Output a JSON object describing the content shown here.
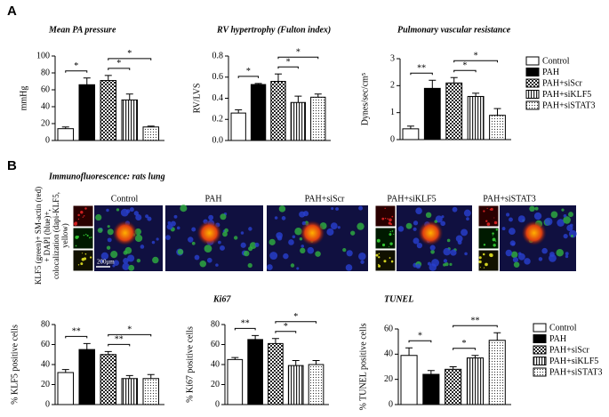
{
  "panel_labels": [
    "A",
    "B"
  ],
  "legend": {
    "labels": [
      "Control",
      "PAH",
      "PAH+siScr",
      "PAH+siKLF5",
      "PAH+siSTAT3"
    ],
    "fills": [
      "white",
      "black",
      "checker",
      "vstripe",
      "dots"
    ]
  },
  "immunofluorescence": {
    "title": "Immunofluorescence: rats lung",
    "ylabel": [
      "KLF5 (green)+ SM-actin (red)",
      "+ DAPI (blue)+,",
      "colocalization (dapi-KLF5,",
      "yellow)"
    ],
    "columns": [
      "Control",
      "PAH",
      "PAH+siScr",
      "PAH+siKLF5",
      "PAH+siSTAT3"
    ],
    "scale_bar": "200μm"
  },
  "chart_data": [
    {
      "type": "bar",
      "title": "Mean PA pressure",
      "ylabel": "mmHg",
      "values": [
        14,
        66,
        71,
        48,
        16
      ],
      "errors": [
        2,
        8,
        6,
        7,
        1
      ],
      "ylim": [
        0,
        100
      ],
      "yticks": [
        0,
        20,
        40,
        60,
        80,
        100
      ],
      "significance": [
        {
          "pair": [
            0,
            1
          ],
          "label": "*"
        },
        {
          "pair": [
            2,
            3
          ],
          "label": "*"
        },
        {
          "pair": [
            2,
            4
          ],
          "label": "*"
        }
      ]
    },
    {
      "type": "bar",
      "title": "RV hypertrophy (Fulton index)",
      "ylabel": "RV/LVS",
      "values": [
        0.26,
        0.53,
        0.56,
        0.36,
        0.41
      ],
      "errors": [
        0.03,
        0.01,
        0.07,
        0.06,
        0.03
      ],
      "ylim": [
        0,
        0.8
      ],
      "yticks": [
        {
          "value": 0,
          "label": "0.0"
        },
        0.2,
        0.4,
        0.6,
        0.8
      ],
      "significance": [
        {
          "pair": [
            0,
            1
          ],
          "label": "*"
        },
        {
          "pair": [
            2,
            3
          ],
          "label": "*"
        },
        {
          "pair": [
            2,
            4
          ],
          "label": "*"
        }
      ]
    },
    {
      "type": "bar",
      "title": "Pulmonary vascular resistance",
      "ylabel": "Dynes/sec/cm⁵",
      "values": [
        0.4,
        1.9,
        2.1,
        1.6,
        0.9
      ],
      "errors": [
        0.1,
        0.3,
        0.2,
        0.12,
        0.25
      ],
      "ylim": [
        0,
        3
      ],
      "yticks": [
        0,
        1,
        2,
        3
      ],
      "significance": [
        {
          "pair": [
            0,
            1
          ],
          "label": "**"
        },
        {
          "pair": [
            2,
            3
          ],
          "label": "*"
        },
        {
          "pair": [
            2,
            4
          ],
          "label": "*"
        }
      ]
    },
    {
      "type": "bar",
      "ylabel": "% KLF5 positive cells",
      "values": [
        32,
        55,
        50,
        26,
        26
      ],
      "errors": [
        3,
        6,
        3,
        3,
        4
      ],
      "ylim": [
        0,
        80
      ],
      "yticks": [
        0,
        20,
        40,
        60,
        80
      ],
      "significance": [
        {
          "pair": [
            0,
            1
          ],
          "label": "**"
        },
        {
          "pair": [
            2,
            3
          ],
          "label": "**"
        },
        {
          "pair": [
            2,
            4
          ],
          "label": "*"
        }
      ]
    },
    {
      "type": "bar",
      "title": "Ki67",
      "ylabel": "% Ki67 positive cells",
      "values": [
        45,
        65,
        61,
        39,
        40
      ],
      "errors": [
        2,
        4,
        5,
        5,
        4
      ],
      "ylim": [
        0,
        80
      ],
      "yticks": [
        0,
        20,
        40,
        60,
        80
      ],
      "significance": [
        {
          "pair": [
            0,
            1
          ],
          "label": "**"
        },
        {
          "pair": [
            2,
            3
          ],
          "label": "*"
        },
        {
          "pair": [
            2,
            4
          ],
          "label": "*"
        }
      ]
    },
    {
      "type": "bar",
      "title": "TUNEL",
      "ylabel": "% TUNEL positive cells",
      "values": [
        39,
        24,
        28,
        37,
        51
      ],
      "errors": [
        6,
        3,
        2,
        2,
        6
      ],
      "ylim": [
        0,
        60
      ],
      "yticks": [
        0,
        20,
        40,
        60
      ],
      "significance": [
        {
          "pair": [
            0,
            1
          ],
          "label": "*"
        },
        {
          "pair": [
            2,
            3
          ],
          "label": "*"
        },
        {
          "pair": [
            2,
            4
          ],
          "label": "**"
        }
      ]
    }
  ]
}
